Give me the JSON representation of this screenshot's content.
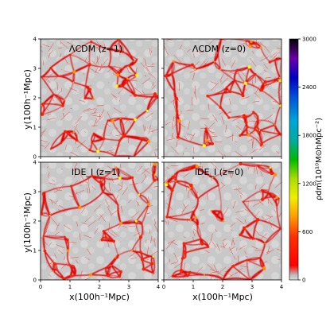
{
  "chart_data": {
    "type": "heatmap",
    "panels": [
      {
        "title": "ΛCDM (z=1)",
        "xticks_shown": false,
        "yticks_shown": true
      },
      {
        "title": "ΛCDM (z=0)",
        "xticks_shown": false,
        "yticks_shown": false
      },
      {
        "title": "IDE_I (z=1)",
        "xticks_shown": true,
        "yticks_shown": true
      },
      {
        "title": "IDE_I (z=0)",
        "xticks_shown": true,
        "yticks_shown": false
      }
    ],
    "xlabel": "x(100h⁻¹Mpc)",
    "ylabel": "y(100h⁻¹Mpc)",
    "xlim": [
      0,
      4
    ],
    "ylim": [
      0,
      4
    ],
    "xticks": [
      "0",
      "1",
      "2",
      "3",
      "4"
    ],
    "yticks": [
      "0",
      "1",
      "2",
      "3",
      "4"
    ],
    "colorbar": {
      "label": "ρdm(10¹⁰M⊙hMpc⁻²)",
      "ticks": [
        "0",
        "600",
        "1200",
        "1800",
        "2400",
        "3000"
      ],
      "range": [
        0,
        3000
      ],
      "colormap": "nipy_spectral",
      "colors": [
        "#e6e6e6",
        "#d0d0d0",
        "#ff0000",
        "#ff8c00",
        "#ffff00",
        "#9acd32",
        "#00c000",
        "#00c8c8",
        "#009bd2",
        "#0000c8",
        "#7700aa",
        "#000000"
      ]
    }
  }
}
